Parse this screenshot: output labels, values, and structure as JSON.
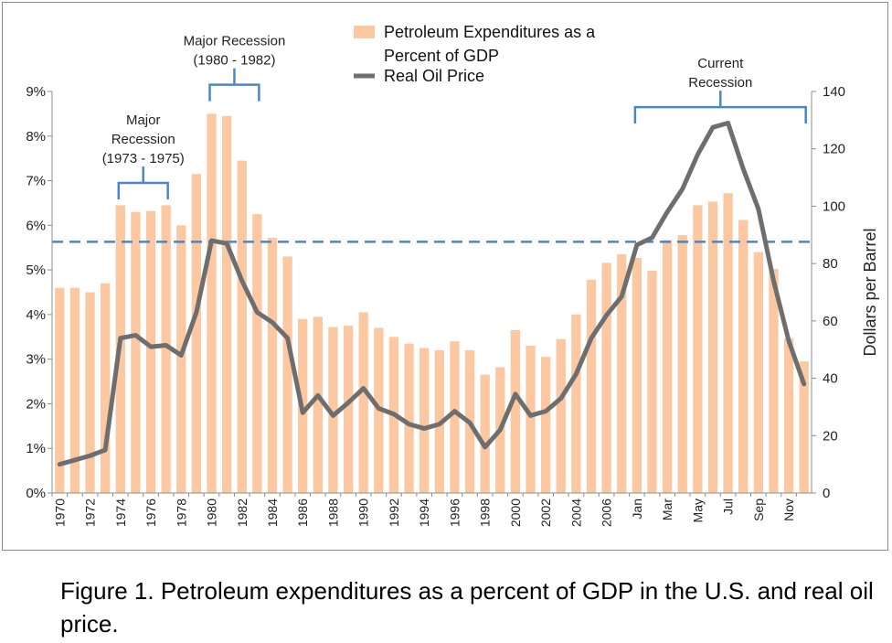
{
  "caption": "Figure 1. Petroleum expenditures as a percent of GDP in the U.S. and real oil price.",
  "chart_data": {
    "type": "bar",
    "colors": {
      "bar": "#FBC8A2",
      "line": "#6E6E6E",
      "reference": "#4A86C8",
      "bracket": "#4A86C8"
    },
    "legend": {
      "position": "top-center",
      "bar_label_lines": [
        "Petroleum Expenditures as a",
        "Percent of GDP"
      ],
      "line_label": "Real Oil Price"
    },
    "y_left": {
      "ticks": [
        "0%",
        "1%",
        "2%",
        "3%",
        "4%",
        "5%",
        "6%",
        "7%",
        "8%",
        "9%"
      ],
      "ylim": [
        0,
        9
      ]
    },
    "y_right": {
      "label": "Dollars per Barrel",
      "ticks": [
        "0",
        "20",
        "40",
        "60",
        "80",
        "100",
        "120",
        "140"
      ],
      "ylim": [
        0,
        140
      ]
    },
    "x_tick_labels": [
      "1970",
      "1972",
      "1974",
      "1976",
      "1978",
      "1980",
      "1982",
      "1984",
      "1986",
      "1988",
      "1990",
      "1992",
      "1994",
      "1996",
      "1998",
      "2000",
      "2002",
      "2004",
      "2006",
      "Jan",
      "Mar",
      "May",
      "Jul",
      "Sep",
      "Nov"
    ],
    "categories": [
      "1970",
      "1971",
      "1972",
      "1973",
      "1974",
      "1975",
      "1976",
      "1977",
      "1978",
      "1979",
      "1980",
      "1981",
      "1982",
      "1983",
      "1984",
      "1985",
      "1986",
      "1987",
      "1988",
      "1989",
      "1990",
      "1991",
      "1992",
      "1993",
      "1994",
      "1995",
      "1996",
      "1997",
      "1998",
      "1999",
      "2000",
      "2001",
      "2002",
      "2003",
      "2004",
      "2005",
      "2006",
      "2007",
      "Jan",
      "Feb",
      "Mar",
      "Apr",
      "May",
      "Jun",
      "Jul",
      "Aug",
      "Sep",
      "Oct",
      "Nov",
      "Dec"
    ],
    "series": [
      {
        "name": "Petroleum Expenditures as a Percent of GDP",
        "type": "bar",
        "axis": "left",
        "values": [
          4.6,
          4.6,
          4.5,
          4.7,
          6.45,
          6.3,
          6.32,
          6.45,
          6.0,
          7.15,
          8.5,
          8.45,
          7.45,
          6.25,
          5.72,
          5.3,
          3.9,
          3.95,
          3.72,
          3.75,
          4.05,
          3.7,
          3.5,
          3.35,
          3.25,
          3.2,
          3.4,
          3.2,
          2.65,
          2.82,
          3.65,
          3.3,
          3.05,
          3.45,
          4.0,
          4.78,
          5.16,
          5.35,
          5.27,
          4.98,
          5.67,
          5.78,
          6.45,
          6.53,
          6.72,
          6.12,
          5.4,
          5.02,
          3.47,
          2.95
        ]
      },
      {
        "name": "Real Oil Price",
        "type": "line",
        "axis": "right",
        "values": [
          10,
          11.5,
          13,
          15,
          54,
          55,
          51,
          51.5,
          48,
          63,
          88,
          87,
          74,
          63,
          59.5,
          54,
          28,
          34,
          27,
          31.5,
          36.5,
          29.5,
          27.5,
          24,
          22.5,
          24,
          28.5,
          24.5,
          16,
          22,
          34.5,
          27,
          28.5,
          33,
          41.5,
          54,
          62,
          68.5,
          86.5,
          89,
          98,
          106,
          118,
          127.5,
          129,
          113,
          99,
          74,
          53,
          38
        ]
      }
    ],
    "reference_line": {
      "axis": "left",
      "value": 5.63,
      "style": "dashed"
    },
    "annotations": [
      {
        "text_lines": [
          "Major",
          "Recession",
          "(1973 - 1975)"
        ],
        "from": "1974",
        "to": "1977",
        "level": 6.95
      },
      {
        "text_lines": [
          "Major Recession",
          "(1980 - 1982)"
        ],
        "from": "1980",
        "to": "1983",
        "level": 9.15
      },
      {
        "text_lines": [
          "Current",
          "Recession"
        ],
        "from": "Jan",
        "to": "Dec",
        "level": 8.65
      }
    ]
  }
}
